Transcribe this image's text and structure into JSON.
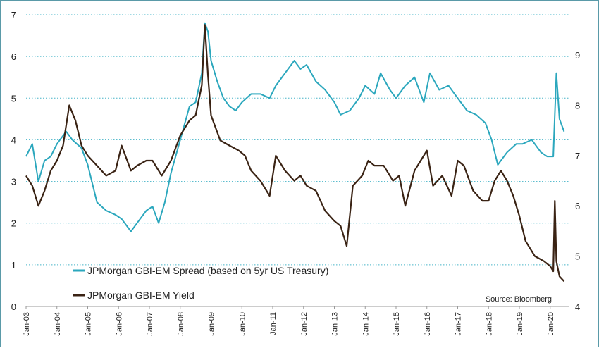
{
  "chart_data": {
    "type": "line",
    "source": "Source: Bloomberg",
    "x_ticks": [
      "Jan-03",
      "Jan-04",
      "Jan-05",
      "Jan-06",
      "Jan-07",
      "Jan-08",
      "Jan-09",
      "Jan-10",
      "Jan-11",
      "Jan-12",
      "Jan-13",
      "Jan-14",
      "Jan-15",
      "Jan-16",
      "Jan-17",
      "Jan-18",
      "Jan-19",
      "Jan-20"
    ],
    "y_left": {
      "min": 0,
      "max": 7,
      "ticks": [
        0,
        1,
        2,
        3,
        4,
        5,
        6,
        7
      ]
    },
    "y_right": {
      "min": 4,
      "max": 9.8,
      "ticks": [
        4,
        5,
        6,
        7,
        8,
        9
      ]
    },
    "grid": "horizontal dotted",
    "legend_position": "bottom-left",
    "series": [
      {
        "name": "JPMorgan GBI-EM Spread (based on 5yr US Treasury)",
        "axis": "left",
        "color": "#2ba7bd",
        "x": [
          2003.0,
          2003.2,
          2003.4,
          2003.6,
          2003.8,
          2004.0,
          2004.3,
          2004.5,
          2004.8,
          2005.0,
          2005.3,
          2005.6,
          2005.9,
          2006.1,
          2006.4,
          2006.6,
          2006.9,
          2007.1,
          2007.3,
          2007.5,
          2007.7,
          2008.0,
          2008.3,
          2008.5,
          2008.7,
          2008.8,
          2008.9,
          2009.0,
          2009.2,
          2009.4,
          2009.6,
          2009.8,
          2010.0,
          2010.3,
          2010.6,
          2010.9,
          2011.1,
          2011.4,
          2011.7,
          2011.9,
          2012.1,
          2012.4,
          2012.7,
          2013.0,
          2013.2,
          2013.5,
          2013.8,
          2014.0,
          2014.3,
          2014.5,
          2014.8,
          2015.0,
          2015.3,
          2015.6,
          2015.9,
          2016.1,
          2016.4,
          2016.7,
          2017.0,
          2017.3,
          2017.6,
          2017.9,
          2018.1,
          2018.3,
          2018.6,
          2018.9,
          2019.1,
          2019.4,
          2019.7,
          2019.9,
          2020.1,
          2020.2,
          2020.3,
          2020.45
        ],
        "values": [
          3.6,
          3.9,
          3.0,
          3.5,
          3.6,
          3.9,
          4.2,
          4.0,
          3.8,
          3.4,
          2.5,
          2.3,
          2.2,
          2.1,
          1.8,
          2.0,
          2.3,
          2.4,
          2.0,
          2.5,
          3.2,
          4.0,
          4.8,
          4.9,
          5.6,
          6.8,
          6.6,
          5.9,
          5.4,
          5.0,
          4.8,
          4.7,
          4.9,
          5.1,
          5.1,
          5.0,
          5.3,
          5.6,
          5.9,
          5.7,
          5.8,
          5.4,
          5.2,
          4.9,
          4.6,
          4.7,
          5.0,
          5.3,
          5.1,
          5.6,
          5.2,
          5.0,
          5.3,
          5.5,
          4.9,
          5.6,
          5.2,
          5.3,
          5.0,
          4.7,
          4.6,
          4.4,
          4.0,
          3.4,
          3.7,
          3.9,
          3.9,
          4.0,
          3.7,
          3.6,
          3.6,
          5.6,
          4.5,
          4.2
        ]
      },
      {
        "name": "JPMorgan GBI-EM Yield",
        "axis": "right",
        "color": "#3a2314",
        "x": [
          2003.0,
          2003.2,
          2003.4,
          2003.6,
          2003.8,
          2004.0,
          2004.2,
          2004.4,
          2004.6,
          2004.8,
          2005.0,
          2005.3,
          2005.6,
          2005.9,
          2006.1,
          2006.4,
          2006.6,
          2006.9,
          2007.1,
          2007.4,
          2007.7,
          2008.0,
          2008.3,
          2008.5,
          2008.7,
          2008.8,
          2008.9,
          2009.0,
          2009.3,
          2009.6,
          2009.9,
          2010.1,
          2010.3,
          2010.6,
          2010.9,
          2011.1,
          2011.4,
          2011.7,
          2011.9,
          2012.1,
          2012.4,
          2012.7,
          2013.0,
          2013.2,
          2013.4,
          2013.6,
          2013.9,
          2014.1,
          2014.3,
          2014.6,
          2014.9,
          2015.1,
          2015.3,
          2015.6,
          2015.8,
          2016.0,
          2016.2,
          2016.5,
          2016.8,
          2017.0,
          2017.2,
          2017.5,
          2017.8,
          2018.0,
          2018.2,
          2018.4,
          2018.6,
          2018.8,
          2019.0,
          2019.2,
          2019.5,
          2019.8,
          2020.0,
          2020.1,
          2020.15,
          2020.2,
          2020.3,
          2020.45
        ],
        "values": [
          6.6,
          6.4,
          6.0,
          6.3,
          6.7,
          6.9,
          7.2,
          8.0,
          7.7,
          7.2,
          7.0,
          6.8,
          6.6,
          6.7,
          7.2,
          6.7,
          6.8,
          6.9,
          6.9,
          6.6,
          6.9,
          7.4,
          7.7,
          7.8,
          8.4,
          9.6,
          8.6,
          7.8,
          7.3,
          7.2,
          7.1,
          7.0,
          6.7,
          6.5,
          6.2,
          7.0,
          6.7,
          6.5,
          6.6,
          6.4,
          6.3,
          5.9,
          5.7,
          5.6,
          5.2,
          6.4,
          6.6,
          6.9,
          6.8,
          6.8,
          6.5,
          6.6,
          6.0,
          6.7,
          6.9,
          7.1,
          6.4,
          6.6,
          6.2,
          6.9,
          6.8,
          6.3,
          6.1,
          6.1,
          6.5,
          6.7,
          6.5,
          6.2,
          5.8,
          5.3,
          5.0,
          4.9,
          4.8,
          4.7,
          6.1,
          4.9,
          4.6,
          4.5
        ]
      }
    ]
  }
}
